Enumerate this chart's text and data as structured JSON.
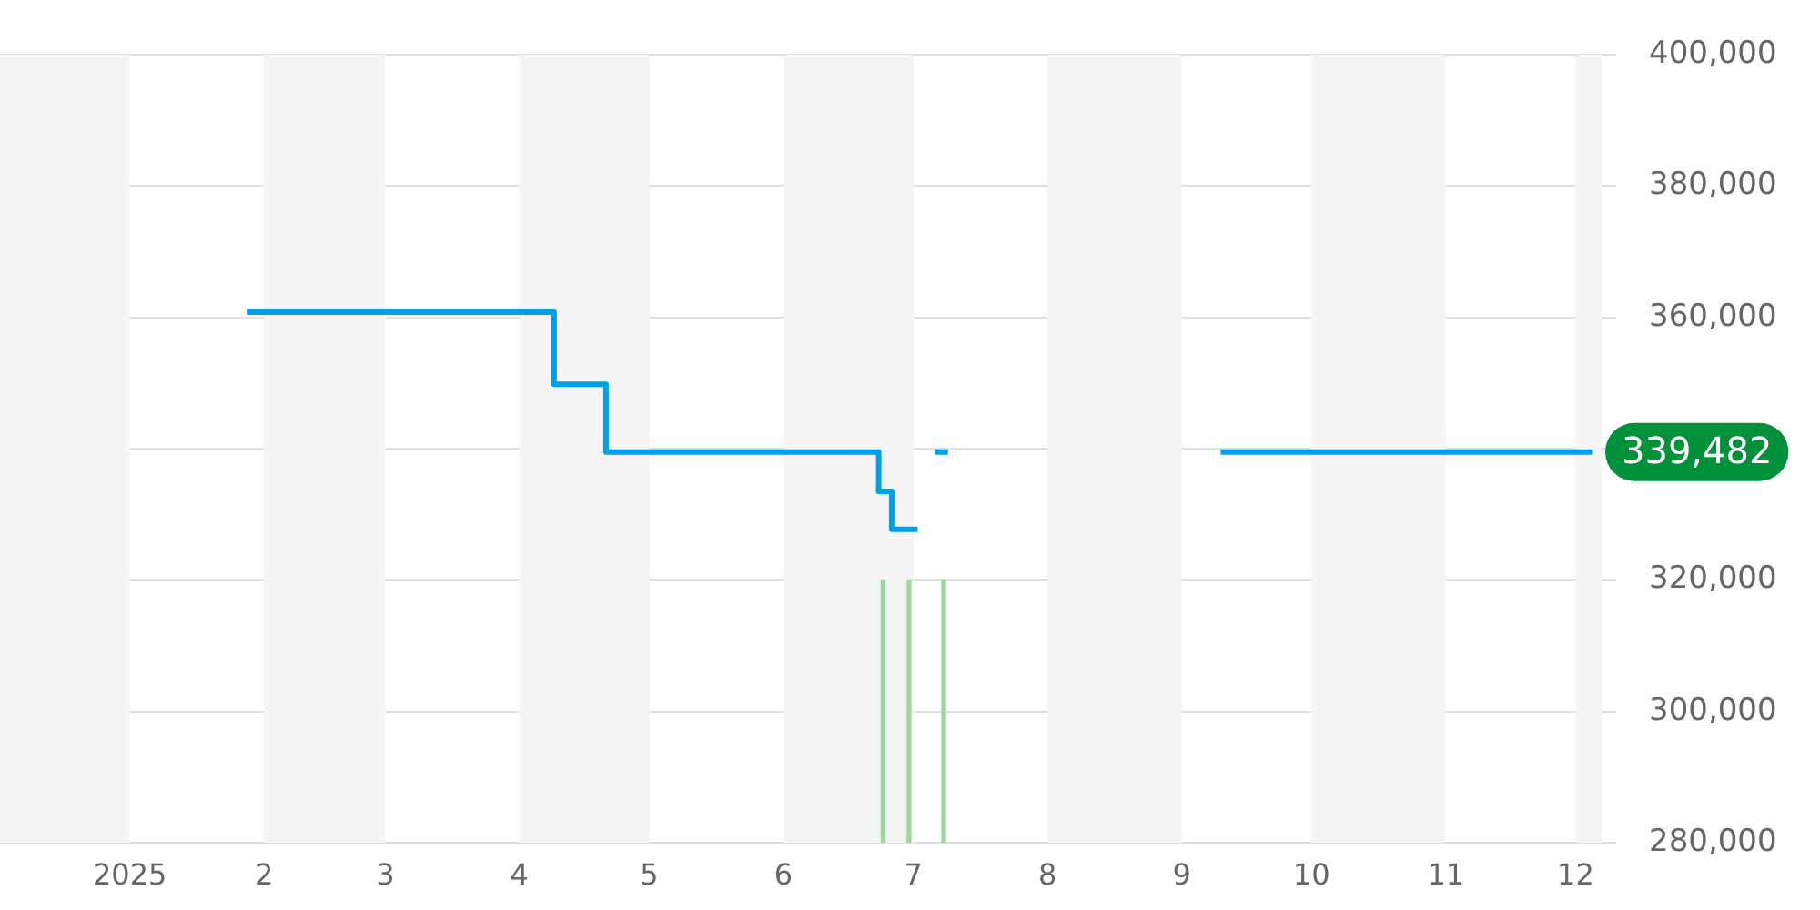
{
  "chart_data": {
    "type": "step",
    "series": [
      {
        "color": "#00a0e9",
        "x": [
          "2025-01-28",
          "2025-04-09",
          "2025-04-21",
          "2025-06-21",
          "2025-06-23",
          "2025-06-26",
          "2025-07-02",
          "2025-07-04",
          "2025-07-06",
          "2025-07-09",
          "2025-08-01",
          "2025-09-10",
          "2025-12-05"
        ],
        "values": [
          360800,
          349800,
          339482,
          339482,
          333500,
          327700,
          327700,
          null,
          339482,
          339482,
          null,
          339482,
          339482
        ]
      },
      {
        "type": "bar",
        "color": "#9dd7a0",
        "x": [
          "2025-06-24",
          "2025-06-30",
          "2025-07-08"
        ],
        "values": [
          320000,
          320000,
          320000
        ]
      }
    ],
    "xlim": [
      "2024-12-02",
      "2025-12-07"
    ],
    "xticks": [
      {
        "value": "2025-01-01",
        "label": "2025"
      },
      {
        "value": "2025-02-01",
        "label": "2"
      },
      {
        "value": "2025-03-01",
        "label": "3"
      },
      {
        "value": "2025-04-01",
        "label": "4"
      },
      {
        "value": "2025-05-01",
        "label": "5"
      },
      {
        "value": "2025-06-01",
        "label": "6"
      },
      {
        "value": "2025-07-01",
        "label": "7"
      },
      {
        "value": "2025-08-01",
        "label": "8"
      },
      {
        "value": "2025-09-01",
        "label": "9"
      },
      {
        "value": "2025-10-01",
        "label": "10"
      },
      {
        "value": "2025-11-01",
        "label": "11"
      },
      {
        "value": "2025-12-01",
        "label": "12"
      }
    ],
    "ylim": [
      280000,
      400000
    ],
    "yticks": [
      {
        "value": 280000,
        "label": "280,000"
      },
      {
        "value": 300000,
        "label": "300,000"
      },
      {
        "value": 320000,
        "label": "320,000"
      },
      {
        "value": 340000,
        "label": null
      },
      {
        "value": 360000,
        "label": "360,000"
      },
      {
        "value": 380000,
        "label": "380,000"
      },
      {
        "value": 400000,
        "label": "400,000"
      }
    ],
    "bands": [
      {
        "axis": "x",
        "from": "2024-12-02",
        "to": "2025-01-01",
        "color": "#f5f5f5"
      },
      {
        "axis": "x",
        "from": "2025-02-01",
        "to": "2025-03-01",
        "color": "#f5f5f5"
      },
      {
        "axis": "x",
        "from": "2025-04-01",
        "to": "2025-05-01",
        "color": "#f5f5f5"
      },
      {
        "axis": "x",
        "from": "2025-06-01",
        "to": "2025-07-01",
        "color": "#f5f5f5"
      },
      {
        "axis": "x",
        "from": "2025-08-01",
        "to": "2025-09-01",
        "color": "#f5f5f5"
      },
      {
        "axis": "x",
        "from": "2025-10-01",
        "to": "2025-11-01",
        "color": "#f5f5f5"
      },
      {
        "axis": "x",
        "from": "2025-12-01",
        "to": "2025-12-07",
        "color": "#f5f5f5"
      }
    ],
    "annotations": [
      {
        "text": "339,482",
        "x": "2025-12-05",
        "y": 339482
      }
    ],
    "grid": "y",
    "legend": false,
    "marker": "none"
  }
}
